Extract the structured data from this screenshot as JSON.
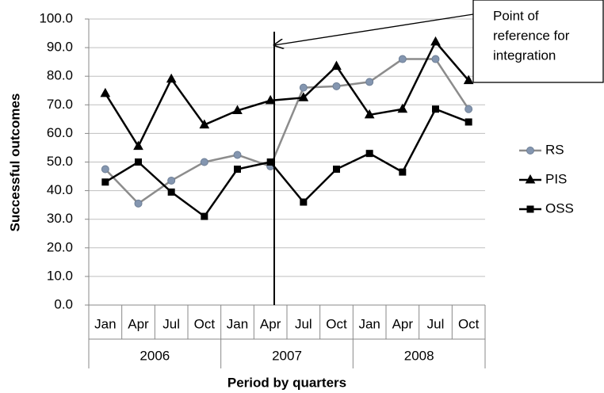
{
  "chart_data": {
    "type": "line",
    "categories": [
      "Jan",
      "Apr",
      "Jul",
      "Oct",
      "Jan",
      "Apr",
      "Jul",
      "Oct",
      "Jan",
      "Apr",
      "Jul",
      "Oct"
    ],
    "category_groups": [
      "2006",
      "2007",
      "2008"
    ],
    "y_label": "Successful outcomes",
    "x_label": "Period by quarters",
    "ylim": [
      0,
      100
    ],
    "yticks": [
      {
        "value": 0,
        "label": "0.0"
      },
      {
        "value": 10,
        "label": "10.0"
      },
      {
        "value": 20,
        "label": "20.0"
      },
      {
        "value": 30,
        "label": "30.0"
      },
      {
        "value": 40,
        "label": "40.0"
      },
      {
        "value": 50,
        "label": "50.0"
      },
      {
        "value": 60,
        "label": "60.0"
      },
      {
        "value": 70,
        "label": "70.0"
      },
      {
        "value": 80,
        "label": "80.0"
      },
      {
        "value": 90,
        "label": "90.0"
      },
      {
        "value": 100,
        "label": "100.0"
      }
    ],
    "grid": true,
    "legend": "right",
    "annotation": [
      "Point of",
      "reference for",
      "integration"
    ],
    "series": [
      {
        "name": "RS",
        "color": "#8c8c8c",
        "marker": "circle",
        "marker_color": "#8496b0",
        "values": [
          47.5,
          35.5,
          43.5,
          50,
          52.5,
          48.5,
          76,
          76.5,
          78,
          86,
          86,
          68.5
        ]
      },
      {
        "name": "PIS",
        "color": "#000000",
        "marker": "triangle",
        "marker_color": "#000000",
        "values": [
          74,
          55.5,
          79,
          63,
          68,
          71.5,
          72.5,
          83.5,
          66.5,
          68.5,
          92,
          78.5
        ]
      },
      {
        "name": "OSS",
        "color": "#000000",
        "marker": "square",
        "marker_color": "#000000",
        "values": [
          43,
          50,
          39.5,
          31,
          47.5,
          50,
          36,
          47.5,
          53,
          46.5,
          68.5,
          64
        ]
      }
    ]
  }
}
